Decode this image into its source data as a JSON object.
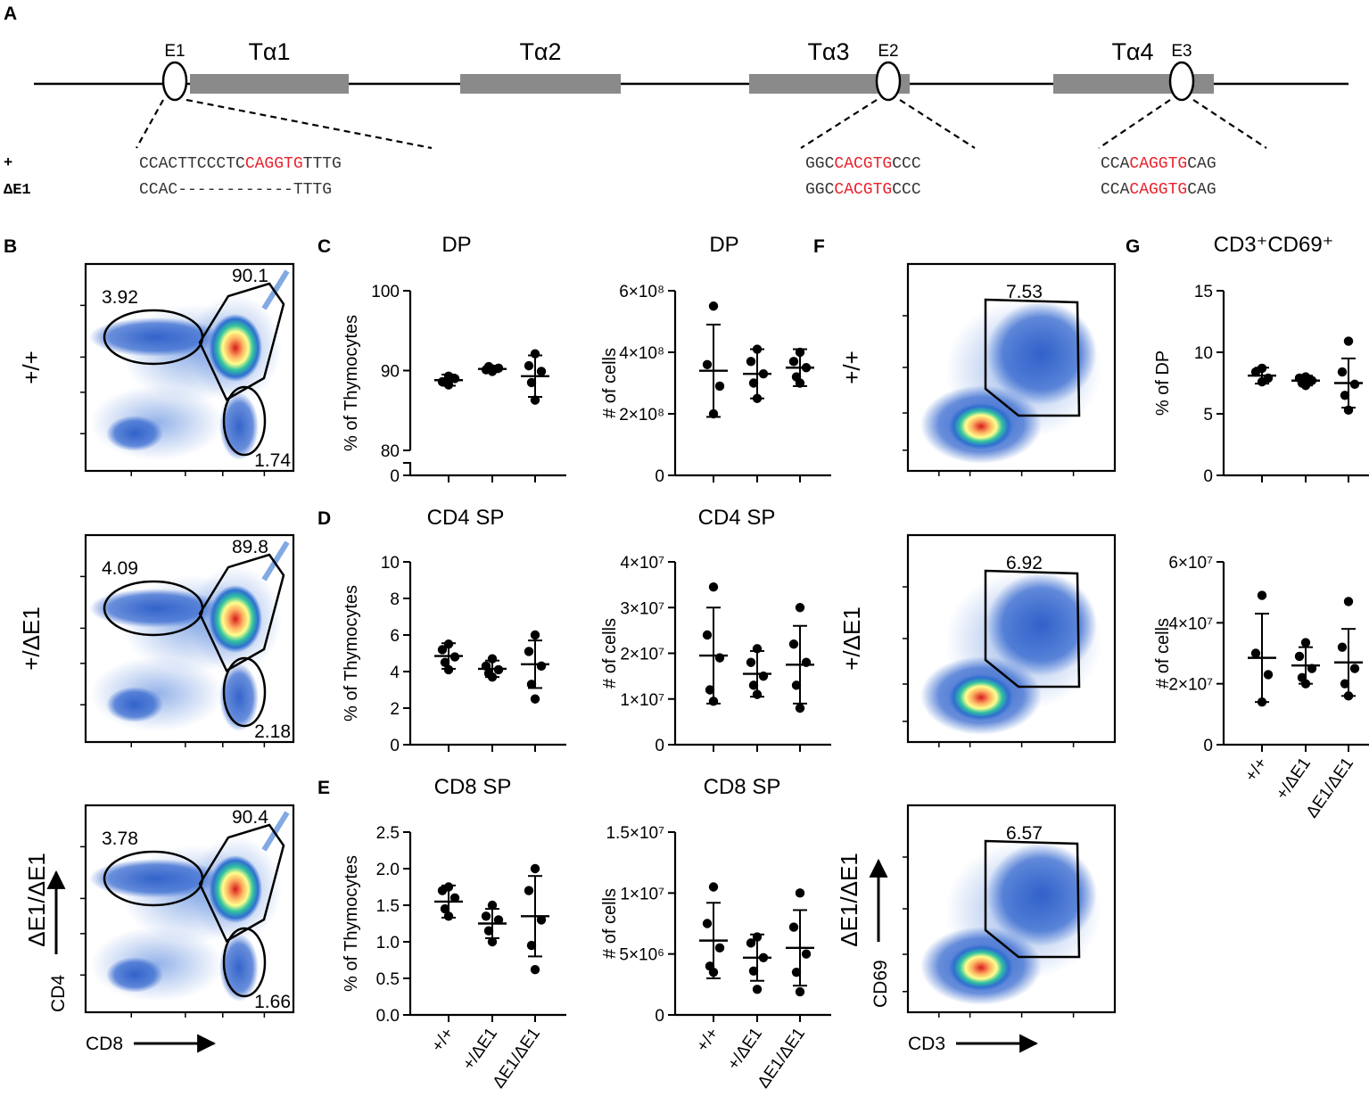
{
  "panel_labels": {
    "a": "A",
    "b": "B",
    "c": "C",
    "d": "D",
    "e": "E",
    "f": "F",
    "g": "G"
  },
  "locus": {
    "segments": [
      "Tα1",
      "Tα2",
      "Tα3",
      "Tα4"
    ],
    "enhancers": [
      "E1",
      "E2",
      "E3"
    ],
    "genotype_plus": "+",
    "genotype_delta": "ΔE1",
    "seq_e1_wt": [
      "CCACTTCCCTC",
      "CAGGTG",
      "TTTG"
    ],
    "seq_e1_del": "CCAC------------TTTG",
    "seq_e2": [
      "GGC",
      "CACGTG",
      "CCC"
    ],
    "seq_e3": [
      "CCA",
      "CAGGTG",
      "CAG"
    ],
    "motif_color": "#e8212b"
  },
  "flow_b": {
    "rows": [
      "+/+",
      "+/ΔE1",
      "ΔE1/ΔE1"
    ],
    "values": [
      [
        "3.92",
        "90.1",
        "1.74"
      ],
      [
        "4.09",
        "89.8",
        "2.18"
      ],
      [
        "3.78",
        "90.4",
        "1.66"
      ]
    ],
    "y_axis": "CD4",
    "x_axis": "CD8"
  },
  "flow_f": {
    "rows": [
      "+/+",
      "+/ΔE1",
      "ΔE1/ΔE1"
    ],
    "values": [
      "7.53",
      "6.92",
      "6.57"
    ],
    "y_axis": "CD69",
    "x_axis": "CD3"
  },
  "genotypes": [
    "+/+",
    "+/ΔE1",
    "ΔE1/ΔE1"
  ],
  "chart_data": [
    {
      "id": "c_pct",
      "type": "scatter",
      "title": "DP",
      "ylabel": "% of Thymocytes",
      "ylim": [
        0,
        100
      ],
      "axis_break": [
        77,
        80
      ],
      "ticks": [
        "0",
        "80",
        "90",
        "100"
      ],
      "groups": [
        {
          "name": "+/+",
          "mean": 88.8,
          "sd": 0.7,
          "points": [
            88.2,
            88.6,
            89.0,
            89.3
          ]
        },
        {
          "name": "+/ΔE1",
          "mean": 90.2,
          "sd": 0.4,
          "points": [
            89.9,
            90.1,
            90.3,
            90.5,
            90.2
          ]
        },
        {
          "name": "ΔE1/ΔE1",
          "mean": 89.3,
          "sd": 2.6,
          "points": [
            92.1,
            90.6,
            89.9,
            88.5,
            86.3
          ]
        }
      ]
    },
    {
      "id": "c_num",
      "type": "scatter",
      "title": "DP",
      "ylabel": "# of cells",
      "ylim": [
        0,
        6
      ],
      "ticks": [
        "0",
        "2×10⁸",
        "4×10⁸",
        "6×10⁸"
      ],
      "groups": [
        {
          "name": "+/+",
          "mean": 3.4,
          "sd": 1.5,
          "points": [
            5.5,
            3.6,
            2.9,
            2.0
          ]
        },
        {
          "name": "+/ΔE1",
          "mean": 3.3,
          "sd": 0.8,
          "points": [
            4.1,
            3.7,
            3.3,
            3.0,
            2.5
          ]
        },
        {
          "name": "ΔE1/ΔE1",
          "mean": 3.5,
          "sd": 0.6,
          "points": [
            4.0,
            3.7,
            3.5,
            3.2,
            3.0
          ]
        }
      ]
    },
    {
      "id": "d_pct",
      "type": "scatter",
      "title": "CD4  SP",
      "ylabel": "% of Thymocytes",
      "ylim": [
        0,
        10
      ],
      "ticks": [
        "0",
        "2",
        "4",
        "6",
        "8",
        "10"
      ],
      "groups": [
        {
          "name": "+/+",
          "mean": 4.85,
          "sd": 0.7,
          "points": [
            5.5,
            5.2,
            4.8,
            4.5,
            4.1
          ]
        },
        {
          "name": "+/ΔE1",
          "mean": 4.15,
          "sd": 0.45,
          "points": [
            4.7,
            4.3,
            4.1,
            3.9,
            3.7
          ]
        },
        {
          "name": "ΔE1/ΔE1",
          "mean": 4.4,
          "sd": 1.3,
          "points": [
            6.0,
            5.1,
            4.3,
            3.3,
            2.5
          ]
        }
      ]
    },
    {
      "id": "d_num",
      "type": "scatter",
      "title": "CD4  SP",
      "ylabel": "# of cells",
      "ylim": [
        0,
        4
      ],
      "ticks": [
        "0",
        "1×10⁷",
        "2×10⁷",
        "3×10⁷",
        "4×10⁷"
      ],
      "groups": [
        {
          "name": "+/+",
          "mean": 1.95,
          "sd": 1.05,
          "points": [
            3.45,
            2.4,
            1.9,
            1.2,
            0.95
          ]
        },
        {
          "name": "+/ΔE1",
          "mean": 1.55,
          "sd": 0.5,
          "points": [
            2.1,
            1.8,
            1.5,
            1.3,
            1.1
          ]
        },
        {
          "name": "ΔE1/ΔE1",
          "mean": 1.75,
          "sd": 0.85,
          "points": [
            3.0,
            2.2,
            1.8,
            1.3,
            0.8
          ]
        }
      ]
    },
    {
      "id": "e_pct",
      "type": "scatter",
      "title": "CD8  SP",
      "ylabel": "% of Thymocytes",
      "ylim": [
        0,
        2.5
      ],
      "ticks": [
        "0.0",
        "0.5",
        "1.0",
        "1.5",
        "2.0",
        "2.5"
      ],
      "groups": [
        {
          "name": "+/+",
          "mean": 1.55,
          "sd": 0.22,
          "points": [
            1.75,
            1.7,
            1.6,
            1.45,
            1.35
          ]
        },
        {
          "name": "+/ΔE1",
          "mean": 1.25,
          "sd": 0.2,
          "points": [
            1.5,
            1.35,
            1.3,
            1.15,
            1.0
          ]
        },
        {
          "name": "ΔE1/ΔE1",
          "mean": 1.35,
          "sd": 0.55,
          "points": [
            2.0,
            1.7,
            1.3,
            0.95,
            0.62
          ]
        }
      ]
    },
    {
      "id": "e_num",
      "type": "scatter",
      "title": "CD8  SP",
      "ylabel": "# of cells",
      "ylim": [
        0,
        15
      ],
      "ticks": [
        "0",
        "5×10⁶",
        "1×10⁷",
        "1.5×10⁷"
      ],
      "groups": [
        {
          "name": "+/+",
          "mean": 6.1,
          "sd": 3.1,
          "points": [
            10.5,
            7.5,
            5.5,
            4.0,
            3.5
          ]
        },
        {
          "name": "+/ΔE1",
          "mean": 4.7,
          "sd": 1.9,
          "points": [
            6.4,
            5.9,
            4.7,
            3.6,
            2.1
          ]
        },
        {
          "name": "ΔE1/ΔE1",
          "mean": 5.5,
          "sd": 3.1,
          "points": [
            10.0,
            7.2,
            5.0,
            3.5,
            1.9
          ]
        }
      ]
    },
    {
      "id": "g_pct",
      "type": "scatter",
      "title": "CD3⁺CD69⁺",
      "ylabel": "% of DP",
      "ylim": [
        0,
        15
      ],
      "ticks": [
        "0",
        "5",
        "10",
        "15"
      ],
      "groups": [
        {
          "name": "+/+",
          "mean": 8.1,
          "sd": 0.65,
          "points": [
            8.7,
            8.4,
            7.9,
            7.6
          ]
        },
        {
          "name": "+/ΔE1",
          "mean": 7.7,
          "sd": 0.4,
          "points": [
            8.0,
            7.9,
            7.7,
            7.5,
            7.3
          ]
        },
        {
          "name": "ΔE1/ΔE1",
          "mean": 7.5,
          "sd": 2.0,
          "points": [
            10.9,
            8.4,
            7.4,
            6.5,
            5.3
          ]
        }
      ]
    },
    {
      "id": "g_num",
      "type": "scatter",
      "title": "",
      "ylabel": "# of cells",
      "ylim": [
        0,
        6
      ],
      "ticks": [
        "0",
        "2×10⁷",
        "4×10⁷",
        "6×10⁷"
      ],
      "groups": [
        {
          "name": "+/+",
          "mean": 2.85,
          "sd": 1.45,
          "points": [
            4.9,
            3.0,
            2.3,
            1.4
          ]
        },
        {
          "name": "+/ΔE1",
          "mean": 2.6,
          "sd": 0.6,
          "points": [
            3.35,
            2.9,
            2.5,
            2.2,
            2.0
          ]
        },
        {
          "name": "ΔE1/ΔE1",
          "mean": 2.7,
          "sd": 1.1,
          "points": [
            4.7,
            3.2,
            2.5,
            2.0,
            1.6
          ]
        }
      ]
    }
  ]
}
